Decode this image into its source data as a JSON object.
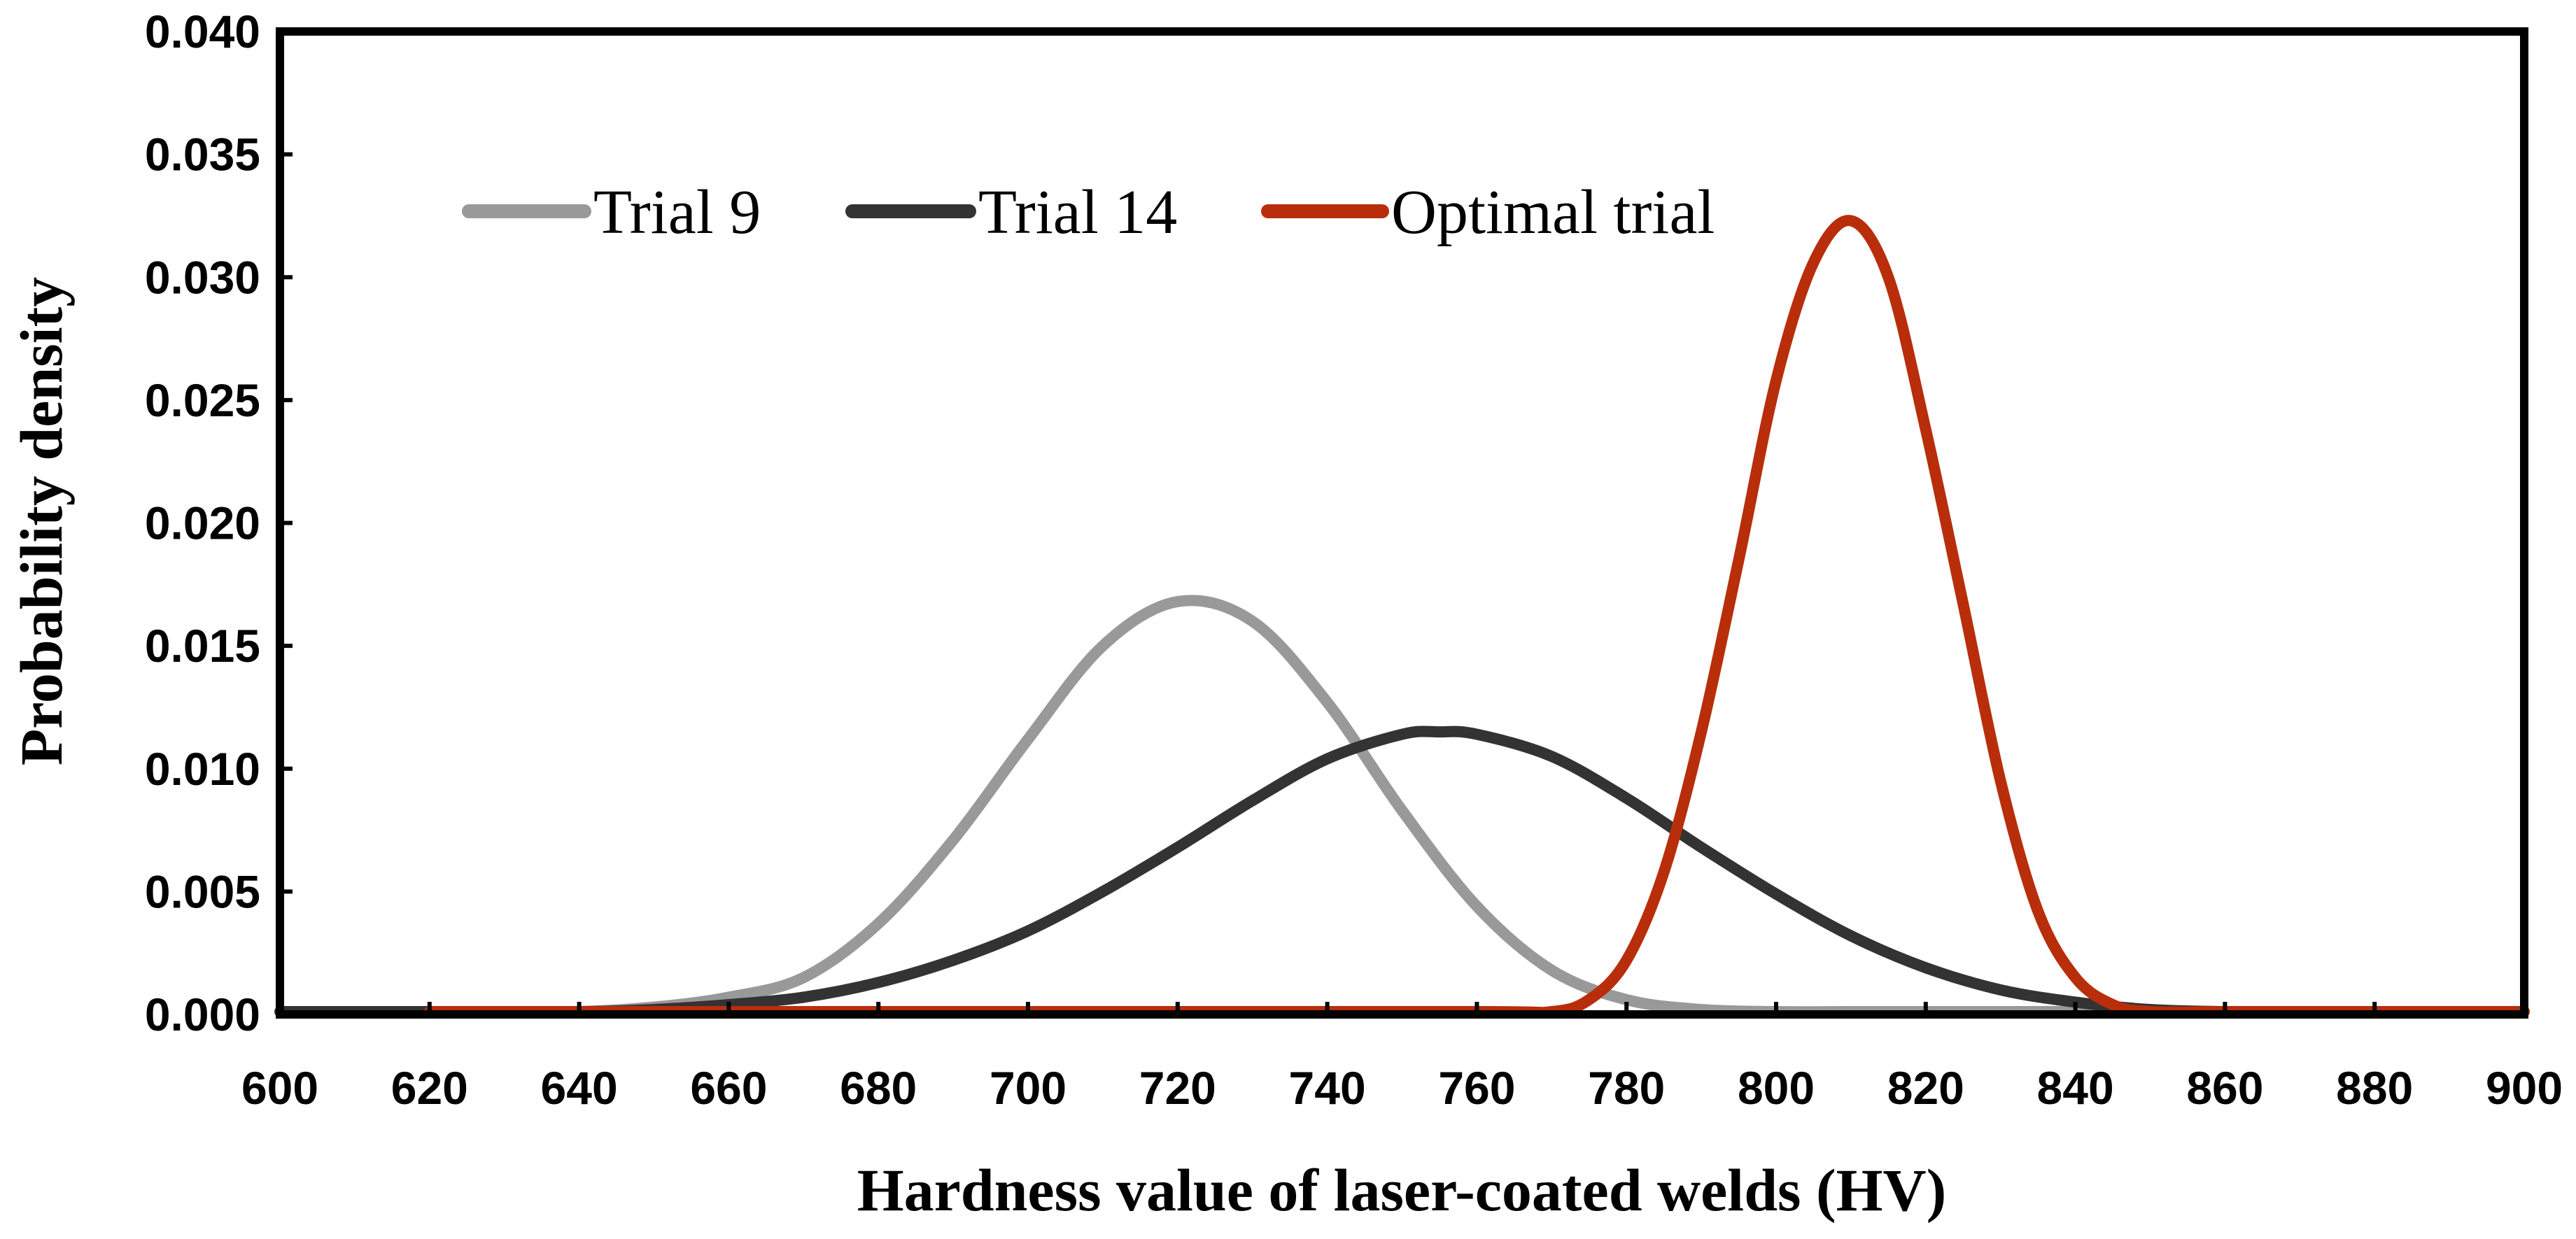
{
  "chart_data": {
    "type": "line",
    "xlabel": "Hardness value of laser-coated welds (HV)",
    "ylabel": "Probability density",
    "xlim": [
      600,
      900
    ],
    "ylim": [
      0,
      0.04
    ],
    "x_ticks": [
      600,
      620,
      640,
      660,
      680,
      700,
      720,
      740,
      760,
      780,
      800,
      820,
      840,
      860,
      880,
      900
    ],
    "y_ticks": [
      "0.000",
      "0.005",
      "0.010",
      "0.015",
      "0.020",
      "0.025",
      "0.030",
      "0.035",
      "0.040"
    ],
    "grid": false,
    "legend_position": "top-left",
    "series": [
      {
        "name": "Trial 9",
        "color": "#999999",
        "x": [
          620,
          630,
          640,
          650,
          660,
          670,
          680,
          690,
          700,
          710,
          720,
          730,
          740,
          750,
          760,
          770,
          780,
          790,
          800,
          810,
          820,
          830,
          840,
          850,
          860,
          880,
          900
        ],
        "y": [
          0.0,
          0.0,
          0.0001,
          0.0003,
          0.0007,
          0.0015,
          0.0037,
          0.0071,
          0.0112,
          0.015,
          0.0168,
          0.016,
          0.0127,
          0.0083,
          0.0044,
          0.0018,
          0.0006,
          0.0002,
          0.0,
          0.0,
          0.0,
          0.0,
          0.0,
          0.0,
          0.0,
          0.0,
          0.0
        ]
      },
      {
        "name": "Trial 14",
        "color": "#333333",
        "x": [
          600,
          620,
          640,
          650,
          660,
          670,
          680,
          690,
          700,
          710,
          720,
          730,
          740,
          750,
          755,
          760,
          770,
          780,
          790,
          800,
          810,
          820,
          830,
          840,
          850,
          860,
          870,
          880,
          900
        ],
        "y": [
          0.0,
          0.0,
          0.0001,
          0.0002,
          0.0004,
          0.0007,
          0.0013,
          0.0022,
          0.0034,
          0.005,
          0.0068,
          0.0087,
          0.0104,
          0.0114,
          0.0115,
          0.0114,
          0.0105,
          0.0088,
          0.0068,
          0.0049,
          0.0032,
          0.0019,
          0.001,
          0.0005,
          0.0002,
          0.0001,
          0.0,
          0.0,
          0.0
        ]
      },
      {
        "name": "Optimal trial",
        "color": "#b82e0b",
        "x": [
          620,
          700,
          760,
          770,
          775,
          780,
          785,
          790,
          795,
          800,
          805,
          810,
          815,
          820,
          825,
          830,
          835,
          840,
          845,
          850,
          860,
          880,
          900
        ],
        "y": [
          0.0,
          0.0,
          0.0,
          0.0001,
          0.0006,
          0.0022,
          0.0058,
          0.0115,
          0.0185,
          0.0258,
          0.0306,
          0.0323,
          0.03,
          0.0238,
          0.0167,
          0.0095,
          0.0042,
          0.0015,
          0.0004,
          0.0001,
          0.0,
          0.0,
          0.0
        ]
      }
    ]
  }
}
